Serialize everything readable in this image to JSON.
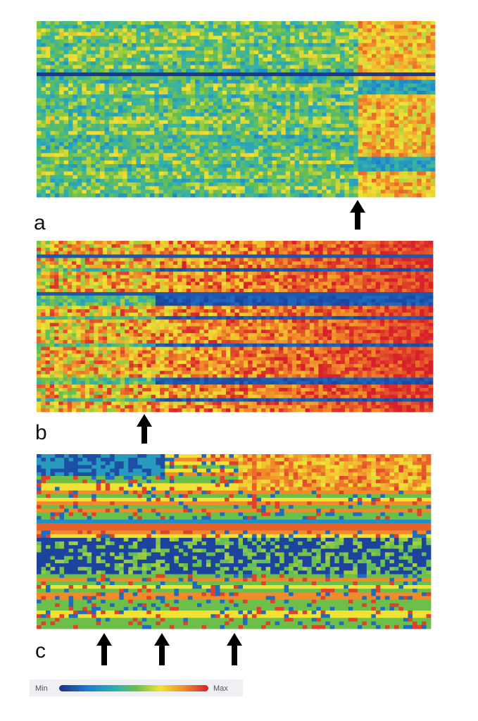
{
  "panels": [
    {
      "label": "a"
    },
    {
      "label": "b"
    },
    {
      "label": "c"
    }
  ],
  "legend": {
    "min": "Min",
    "max": "Max"
  }
}
